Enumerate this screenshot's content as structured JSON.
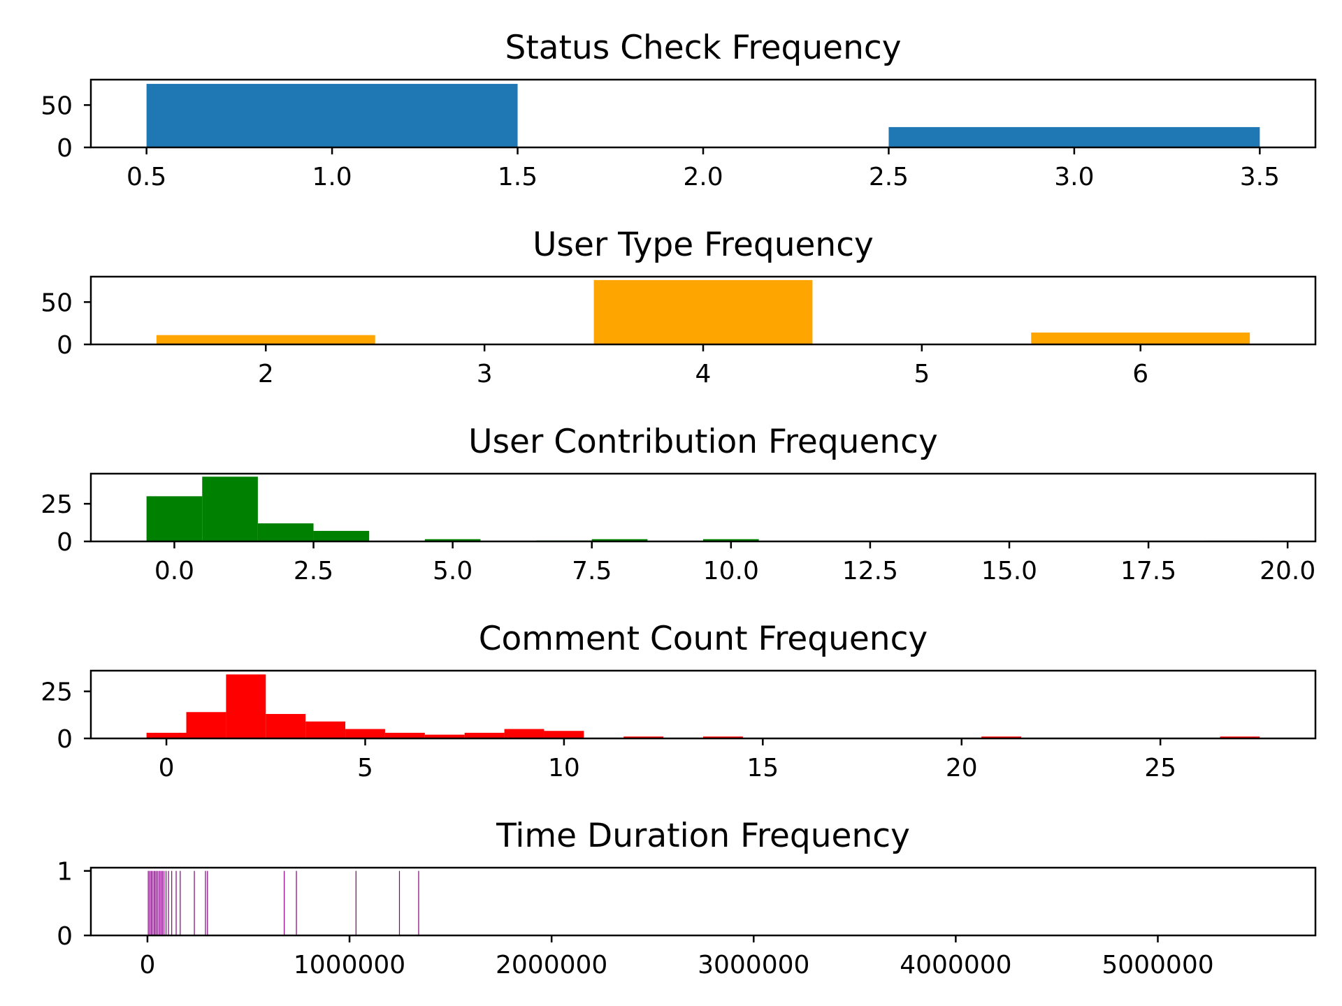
{
  "chart_data": [
    {
      "type": "bar",
      "title": "Status Check Frequency",
      "color": "#1f77b4",
      "bins": [
        [
          0.5,
          1.5
        ],
        [
          1.5,
          2.5
        ],
        [
          2.5,
          3.5
        ]
      ],
      "values": [
        75,
        0,
        24
      ],
      "xlim": [
        0.35,
        3.65
      ],
      "ylim": [
        0,
        80
      ],
      "xticks": [
        0.5,
        1.0,
        1.5,
        2.0,
        2.5,
        3.0,
        3.5
      ],
      "xtick_labels": [
        "0.5",
        "1.0",
        "1.5",
        "2.0",
        "2.5",
        "3.0",
        "3.5"
      ],
      "yticks": [
        0,
        50
      ],
      "ytick_labels": [
        "0",
        "50"
      ]
    },
    {
      "type": "bar",
      "title": "User Type Frequency",
      "color": "#ffa500",
      "bins": [
        [
          1.5,
          2.5
        ],
        [
          2.5,
          3.5
        ],
        [
          3.5,
          4.5
        ],
        [
          4.5,
          5.5
        ],
        [
          5.5,
          6.5
        ]
      ],
      "values": [
        11,
        0,
        76,
        0,
        14
      ],
      "xlim": [
        1.2,
        6.8
      ],
      "ylim": [
        0,
        80
      ],
      "xticks": [
        2,
        3,
        4,
        5,
        6
      ],
      "xtick_labels": [
        "2",
        "3",
        "4",
        "5",
        "6"
      ],
      "yticks": [
        0,
        50
      ],
      "ytick_labels": [
        "0",
        "50"
      ]
    },
    {
      "type": "bar",
      "title": "User Contribution Frequency",
      "color": "#008000",
      "bins": [
        [
          -0.5,
          0.5
        ],
        [
          0.5,
          1.5
        ],
        [
          1.5,
          2.5
        ],
        [
          2.5,
          3.5
        ],
        [
          3.5,
          4.5
        ],
        [
          4.5,
          5.5
        ],
        [
          5.5,
          6.5
        ],
        [
          6.5,
          7.5
        ],
        [
          7.5,
          8.5
        ],
        [
          8.5,
          9.5
        ],
        [
          9.5,
          10.5
        ],
        [
          10.5,
          11.5
        ],
        [
          11.5,
          12.5
        ],
        [
          12.5,
          13.5
        ],
        [
          13.5,
          14.5
        ],
        [
          14.5,
          15.5
        ],
        [
          15.5,
          16.5
        ],
        [
          16.5,
          17.5
        ],
        [
          17.5,
          18.5
        ],
        [
          18.5,
          19.5
        ]
      ],
      "values": [
        30,
        43,
        12,
        7,
        0,
        1.5,
        0,
        0.6,
        1.5,
        0,
        1.5,
        0,
        0,
        0,
        0,
        0,
        0,
        0,
        0,
        0.5
      ],
      "xlim": [
        -1.5,
        20.5
      ],
      "ylim": [
        0,
        45
      ],
      "xticks": [
        0,
        2.5,
        5,
        7.5,
        10,
        12.5,
        15,
        17.5,
        20
      ],
      "xtick_labels": [
        "0.0",
        "2.5",
        "5.0",
        "7.5",
        "10.0",
        "12.5",
        "15.0",
        "17.5",
        "20.0"
      ],
      "yticks": [
        0,
        25
      ],
      "ytick_labels": [
        "0",
        "25"
      ]
    },
    {
      "type": "bar",
      "title": "Comment Count Frequency",
      "color": "#ff0000",
      "bins": [
        [
          -0.5,
          0.5
        ],
        [
          0.5,
          1.5
        ],
        [
          1.5,
          2.5
        ],
        [
          2.5,
          3.5
        ],
        [
          3.5,
          4.5
        ],
        [
          4.5,
          5.5
        ],
        [
          5.5,
          6.5
        ],
        [
          6.5,
          7.5
        ],
        [
          7.5,
          8.5
        ],
        [
          8.5,
          9.5
        ],
        [
          9.5,
          10.5
        ],
        [
          11.5,
          12.5
        ],
        [
          13.5,
          14.5
        ],
        [
          20.5,
          21.5
        ],
        [
          26.5,
          27.5
        ]
      ],
      "values": [
        3,
        14,
        34,
        13,
        9,
        5,
        3,
        2,
        3,
        5,
        4,
        1,
        1,
        1,
        1
      ],
      "xlim": [
        -1.9,
        28.9
      ],
      "ylim": [
        0,
        36
      ],
      "xticks": [
        0,
        5,
        10,
        15,
        20,
        25
      ],
      "xtick_labels": [
        "0",
        "5",
        "10",
        "15",
        "20",
        "25"
      ],
      "yticks": [
        0,
        25
      ],
      "ytick_labels": [
        "0",
        "25"
      ]
    },
    {
      "type": "bar",
      "title": "Time Duration Frequency",
      "color": "#800080",
      "bin_width": 4000,
      "lines_x": [
        2000,
        9000,
        16000,
        22000,
        30000,
        36000,
        43000,
        50000,
        58000,
        65000,
        72000,
        80000,
        90000,
        102000,
        118000,
        140000,
        160000,
        230000,
        285000,
        295000,
        675000,
        735000,
        1030000,
        1245000,
        1340000
      ],
      "values": [
        1,
        1,
        1,
        1,
        1,
        1,
        1,
        1,
        1,
        1,
        1,
        1,
        1,
        1,
        1,
        1,
        1,
        1,
        1,
        1,
        1,
        1,
        1,
        1,
        1
      ],
      "xlim": [
        -280000,
        5780000
      ],
      "ylim": [
        0,
        1.05
      ],
      "xticks": [
        0,
        1000000,
        2000000,
        3000000,
        4000000,
        5000000
      ],
      "xtick_labels": [
        "0",
        "1000000",
        "2000000",
        "3000000",
        "4000000",
        "5000000"
      ],
      "yticks": [
        0,
        1
      ],
      "ytick_labels": [
        "0",
        "1"
      ]
    }
  ]
}
